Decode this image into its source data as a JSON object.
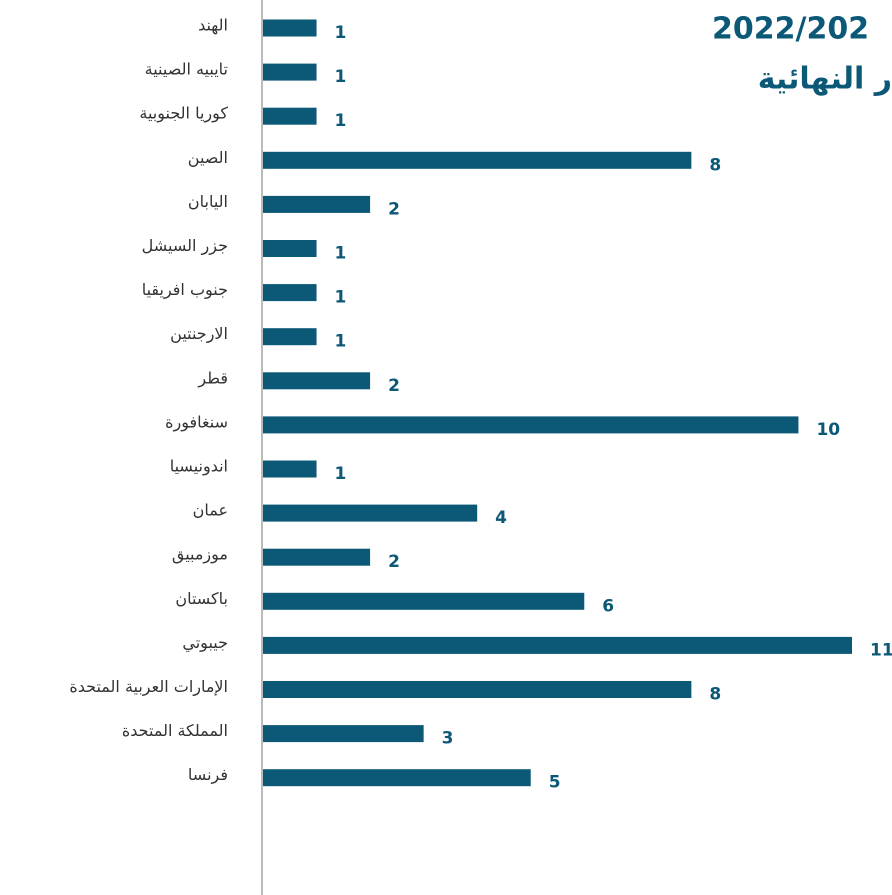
{
  "chart_data": {
    "type": "bar",
    "orientation": "horizontal",
    "title": [
      "2022/202",
      "ر النهائية"
    ],
    "categories": [
      "الهند",
      "تايبيه الصينية",
      "كوريا الجنوبية",
      "الصين",
      "اليابان",
      "جزر السيشل",
      "جنوب افريقيا",
      "الارجنتين",
      "قطر",
      "سنغافورة",
      "اندونيسيا",
      "عمان",
      "موزمبيق",
      "باكستان",
      "جيبوتي",
      "الإمارات العربية المتحدة",
      "المملكة المتحدة",
      "فرنسا"
    ],
    "values": [
      1,
      1,
      1,
      8,
      2,
      1,
      1,
      1,
      2,
      10,
      1,
      4,
      2,
      6,
      11,
      8,
      3,
      5
    ],
    "color": "#0b5877"
  }
}
